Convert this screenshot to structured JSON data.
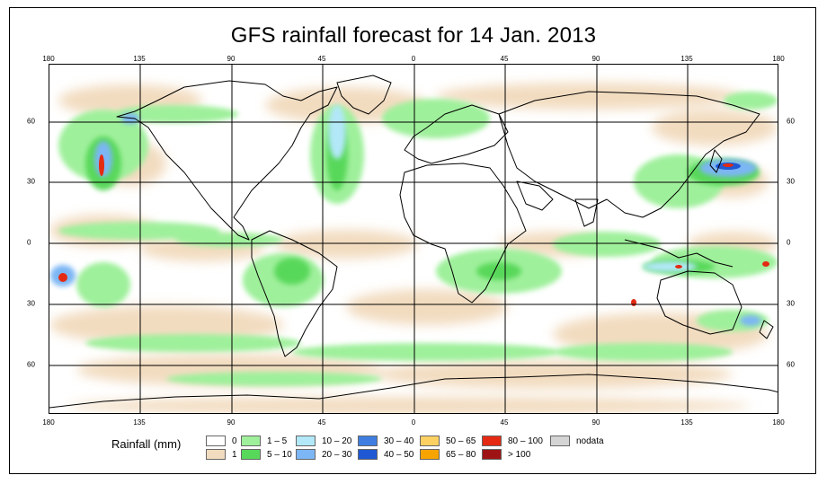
{
  "title": "GFS rainfall forecast for 14 Jan. 2013",
  "axes": {
    "lon_labels": [
      "180",
      "135",
      "90",
      "45",
      "0",
      "45",
      "90",
      "135",
      "180"
    ],
    "lat_labels": [
      "60",
      "30",
      "0",
      "30",
      "60"
    ]
  },
  "legend": {
    "title": "Rainfall (mm)",
    "items": [
      {
        "label": "0",
        "color": "#ffffff"
      },
      {
        "label": "1",
        "color": "#f2dcc0"
      },
      {
        "label": "1 – 5",
        "color": "#9ff09b"
      },
      {
        "label": "5 – 10",
        "color": "#58d85a"
      },
      {
        "label": "10 – 20",
        "color": "#b2e8f8"
      },
      {
        "label": "20 – 30",
        "color": "#7cb6f4"
      },
      {
        "label": "30 – 40",
        "color": "#3f7ee0"
      },
      {
        "label": "40 – 50",
        "color": "#1f58d2"
      },
      {
        "label": "50 – 65",
        "color": "#fdd062"
      },
      {
        "label": "65 – 80",
        "color": "#f8a400"
      },
      {
        "label": "80 – 100",
        "color": "#e42a12"
      },
      {
        "label": "> 100",
        "color": "#9e1414"
      },
      {
        "label": "nodata",
        "color": "#d4d4d4"
      }
    ]
  }
}
